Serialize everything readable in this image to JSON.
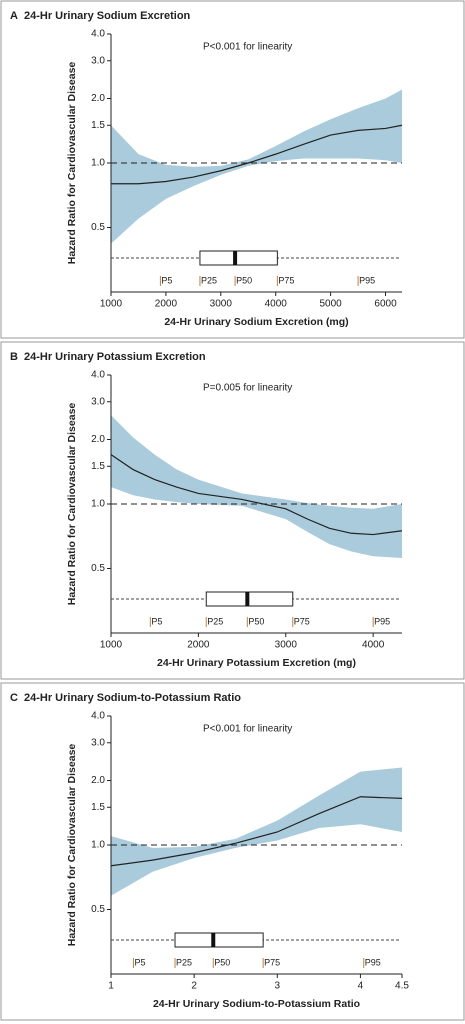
{
  "chart_data": [
    {
      "type": "line",
      "panel": "A",
      "title": "24-Hr Urinary Sodium Excretion",
      "annotation": "P<0.001 for linearity",
      "y_label": "Hazard Ratio for Cardiovascular Disease",
      "x_label": "24-Hr Urinary Sodium Excretion (mg)",
      "log_y": true,
      "color": "#222222",
      "band_color": "#a9cbdb",
      "reference_line": 1,
      "x": [
        1000,
        1500,
        2000,
        2500,
        3000,
        3500,
        4000,
        4500,
        5000,
        5500,
        6000,
        6300
      ],
      "values": [
        0.8,
        0.8,
        0.82,
        0.86,
        0.92,
        1.0,
        1.1,
        1.22,
        1.35,
        1.42,
        1.45,
        1.5
      ],
      "lower": [
        0.42,
        0.55,
        0.68,
        0.78,
        0.88,
        0.97,
        1.02,
        1.05,
        1.05,
        1.05,
        1.03,
        1.0
      ],
      "upper": [
        1.5,
        1.1,
        0.98,
        0.96,
        0.97,
        1.04,
        1.2,
        1.4,
        1.6,
        1.8,
        2.0,
        2.2
      ],
      "xlim": [
        1000,
        6300
      ],
      "xticks": [
        1000,
        2000,
        3000,
        4000,
        5000,
        6000
      ],
      "ylim": [
        0.25,
        4.0
      ],
      "yticks": [
        0.5,
        {
          "value": 1,
          "label": "1.0"
        },
        1.5,
        {
          "value": 2,
          "label": "2.0"
        },
        {
          "value": 3,
          "label": "3.0"
        },
        {
          "value": 4,
          "label": "4.0"
        }
      ],
      "box": {
        "q1": 2620,
        "median": 3260,
        "q3": 4030
      },
      "percentiles": [
        {
          "label": "P5",
          "value": 1900
        },
        {
          "label": "P25",
          "value": 2620
        },
        {
          "label": "P50",
          "value": 3260
        },
        {
          "label": "P75",
          "value": 4030
        },
        {
          "label": "P95",
          "value": 5500
        }
      ]
    },
    {
      "type": "line",
      "panel": "B",
      "title": "24-Hr Urinary Potassium Excretion",
      "annotation": "P=0.005 for linearity",
      "y_label": "Hazard Ratio for Cardiovascular Disease",
      "x_label": "24-Hr Urinary Potassium Excretion (mg)",
      "log_y": true,
      "color": "#222222",
      "band_color": "#a9cbdb",
      "reference_line": 1,
      "x": [
        1000,
        1250,
        1500,
        1750,
        2000,
        2500,
        3000,
        3250,
        3500,
        3750,
        4000,
        4330
      ],
      "values": [
        1.7,
        1.45,
        1.3,
        1.2,
        1.12,
        1.05,
        0.95,
        0.85,
        0.77,
        0.73,
        0.72,
        0.75
      ],
      "lower": [
        1.2,
        1.1,
        1.05,
        1.02,
        1.0,
        0.98,
        0.85,
        0.74,
        0.65,
        0.6,
        0.57,
        0.56
      ],
      "upper": [
        2.6,
        2.05,
        1.7,
        1.45,
        1.3,
        1.12,
        1.05,
        1.01,
        0.98,
        0.96,
        0.95,
        1.0
      ],
      "xlim": [
        1000,
        4330
      ],
      "xticks": [
        1000,
        2000,
        3000,
        4000
      ],
      "ylim": [
        0.25,
        4.0
      ],
      "yticks": [
        0.5,
        {
          "value": 1,
          "label": "1.0"
        },
        1.5,
        {
          "value": 2,
          "label": "2.0"
        },
        {
          "value": 3,
          "label": "3.0"
        },
        {
          "value": 4,
          "label": "4.0"
        }
      ],
      "box": {
        "q1": 2090,
        "median": 2560,
        "q3": 3080
      },
      "percentiles": [
        {
          "label": "P5",
          "value": 1450
        },
        {
          "label": "P25",
          "value": 2090
        },
        {
          "label": "P50",
          "value": 2560
        },
        {
          "label": "P75",
          "value": 3080
        },
        {
          "label": "P95",
          "value": 4000
        }
      ]
    },
    {
      "type": "line",
      "panel": "C",
      "title": "24-Hr Urinary Sodium-to-Potassium Ratio",
      "annotation": "P<0.001 for linearity",
      "y_label": "Hazard Ratio for Cardiovascular Disease",
      "x_label": "24-Hr Urinary Sodium-to-Potassium Ratio",
      "log_y": true,
      "color": "#222222",
      "band_color": "#a9cbdb",
      "reference_line": 1,
      "x": [
        1,
        1.5,
        2,
        2.5,
        3,
        3.5,
        4,
        4.5
      ],
      "values": [
        0.8,
        0.85,
        0.92,
        1.02,
        1.15,
        1.4,
        1.68,
        1.65
      ],
      "lower": [
        0.58,
        0.75,
        0.87,
        0.97,
        1.05,
        1.2,
        1.25,
        1.15
      ],
      "upper": [
        1.1,
        0.97,
        0.98,
        1.07,
        1.3,
        1.7,
        2.2,
        2.3
      ],
      "xlim": [
        1,
        4.5
      ],
      "xticks": [
        1,
        2,
        3,
        4,
        4.5
      ],
      "ylim": [
        0.25,
        4.0
      ],
      "yticks": [
        0.5,
        {
          "value": 1,
          "label": "1.0"
        },
        1.5,
        {
          "value": 2,
          "label": "2.0"
        },
        {
          "value": 3,
          "label": "3.0"
        },
        {
          "value": 4,
          "label": "4.0"
        }
      ],
      "box": {
        "q1": 1.77,
        "median": 2.23,
        "q3": 2.83
      },
      "percentiles": [
        {
          "label": "P5",
          "value": 1.27
        },
        {
          "label": "P25",
          "value": 1.77
        },
        {
          "label": "P50",
          "value": 2.23
        },
        {
          "label": "P75",
          "value": 2.83
        },
        {
          "label": "P95",
          "value": 4.04
        }
      ]
    }
  ]
}
